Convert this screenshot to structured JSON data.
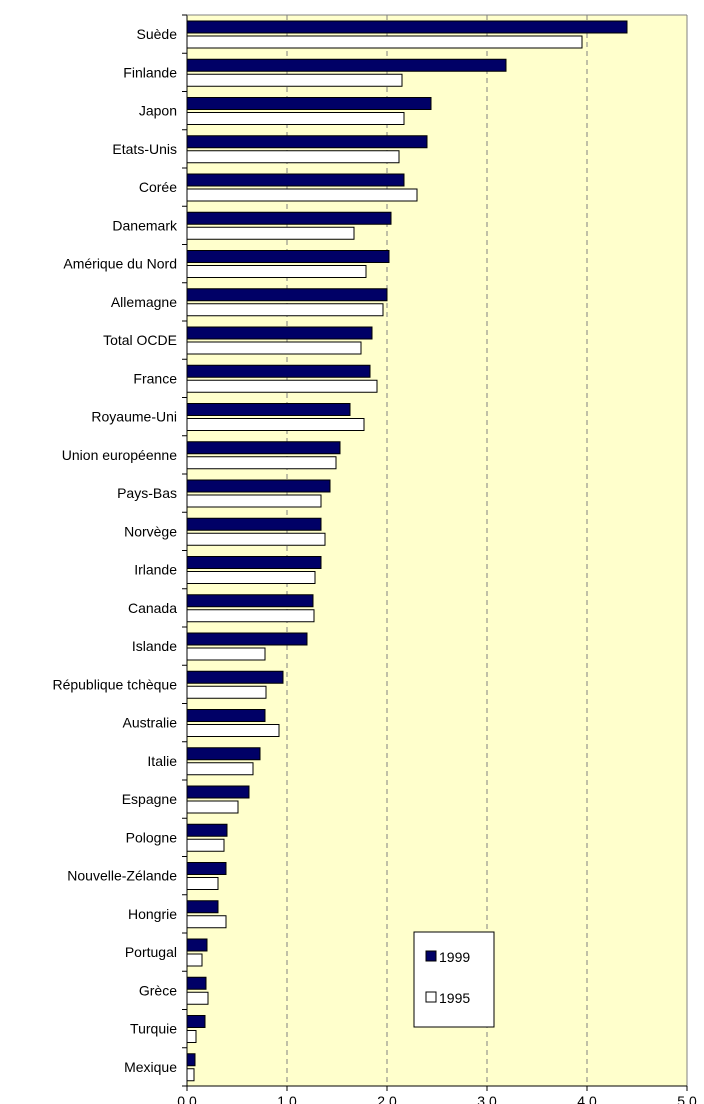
{
  "chart_data": {
    "type": "bar",
    "orientation": "horizontal",
    "categories": [
      "Suède",
      "Finlande",
      "Japon",
      "Etats-Unis",
      "Corée",
      "Danemark",
      "Amérique du Nord",
      "Allemagne",
      "Total OCDE",
      "France",
      "Royaume-Uni",
      "Union européenne",
      "Pays-Bas",
      "Norvège",
      "Irlande",
      "Canada",
      "Islande",
      "République tchèque",
      "Australie",
      "Italie",
      "Espagne",
      "Pologne",
      "Nouvelle-Zélande",
      "Hongrie",
      "Portugal",
      "Grèce",
      "Turquie",
      "Mexique"
    ],
    "series": [
      {
        "name": "1999",
        "color": "#000066",
        "values": [
          4.4,
          3.19,
          2.44,
          2.4,
          2.17,
          2.04,
          2.02,
          2.0,
          1.85,
          1.83,
          1.63,
          1.53,
          1.43,
          1.34,
          1.34,
          1.26,
          1.2,
          0.96,
          0.78,
          0.73,
          0.62,
          0.4,
          0.39,
          0.31,
          0.2,
          0.19,
          0.18,
          0.08
        ]
      },
      {
        "name": "1995",
        "color": "#ffffff",
        "values": [
          3.95,
          2.15,
          2.17,
          2.12,
          2.3,
          1.67,
          1.79,
          1.96,
          1.74,
          1.9,
          1.77,
          1.49,
          1.34,
          1.38,
          1.28,
          1.27,
          0.78,
          0.79,
          0.92,
          0.66,
          0.51,
          0.37,
          0.31,
          0.39,
          0.15,
          0.21,
          0.09,
          0.07
        ]
      }
    ],
    "x_ticks": [
      "0.0",
      "1.0",
      "2.0",
      "3.0",
      "4.0",
      "5.0"
    ],
    "xlim": [
      0,
      5
    ],
    "xlabel": "",
    "ylabel": "",
    "title": "",
    "grid": "vertical dashed",
    "plot_background": "#ffffcc",
    "legend_placement": "bottom-right"
  }
}
